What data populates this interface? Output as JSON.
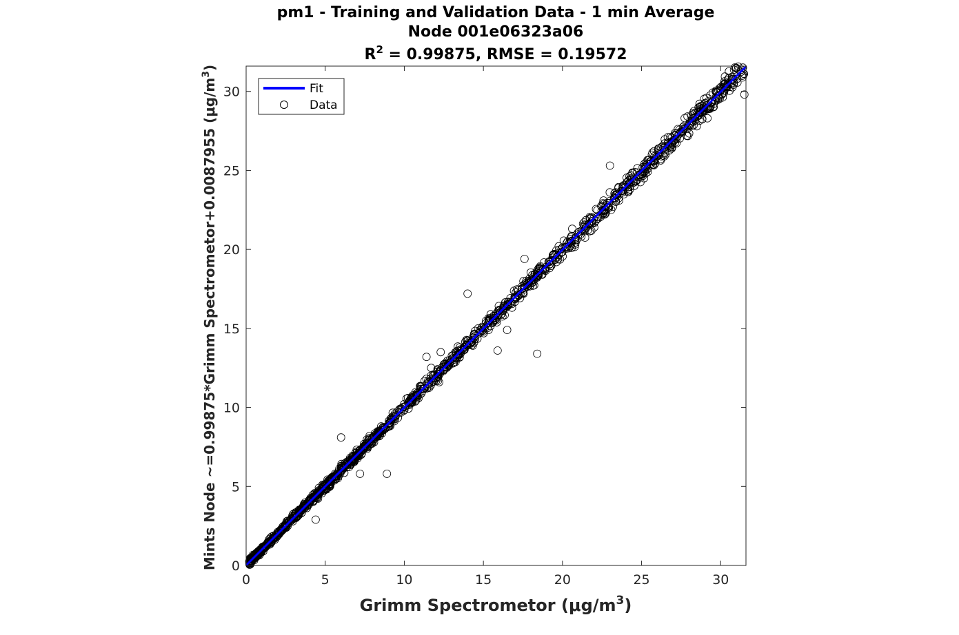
{
  "chart_data": {
    "type": "scatter",
    "title_line1": "pm1 - Training and Validation Data - 1 min Average",
    "title_line2": "Node 001e06323a06",
    "title_line3_prefix": "R",
    "title_line3_sup": "2",
    "title_line3_rest": " = 0.99875, RMSE = 0.19572",
    "xlabel": "Grimm Spectrometor (μg/m",
    "xlabel_sup": "3",
    "xlabel_end": ")",
    "ylabel": "Mints Node ~=0.99875*Grimm Spectrometor+0.0087955 (μg/m",
    "ylabel_sup": "3",
    "ylabel_end": ")",
    "xlim": [
      0,
      31.6
    ],
    "ylim": [
      0,
      31.6
    ],
    "xticks": [
      "0",
      "5",
      "10",
      "15",
      "20",
      "25",
      "30"
    ],
    "yticks": [
      "0",
      "5",
      "10",
      "15",
      "20",
      "25",
      "30"
    ],
    "grid": false,
    "legend_position": "top-left",
    "series": [
      {
        "name": "Fit",
        "kind": "line",
        "color": "#0000ff",
        "slope": 0.99875,
        "intercept": 0.0087955,
        "x": [
          0,
          31.6
        ]
      },
      {
        "name": "Data",
        "kind": "scatter",
        "marker": "open-circle",
        "color": "#000000",
        "outliers": [
          [
            18.4,
            13.4
          ],
          [
            23.0,
            25.3
          ],
          [
            12.2,
            11.6
          ],
          [
            4.4,
            2.9
          ],
          [
            8.9,
            5.8
          ],
          [
            14.0,
            17.2
          ],
          [
            13.6,
            13.6
          ],
          [
            15.9,
            13.6
          ],
          [
            11.4,
            13.2
          ],
          [
            6.0,
            8.1
          ],
          [
            31.5,
            29.8
          ],
          [
            12.3,
            13.5
          ],
          [
            17.6,
            19.4
          ],
          [
            11.7,
            12.5
          ],
          [
            7.2,
            5.8
          ],
          [
            16.5,
            14.9
          ]
        ]
      }
    ]
  }
}
